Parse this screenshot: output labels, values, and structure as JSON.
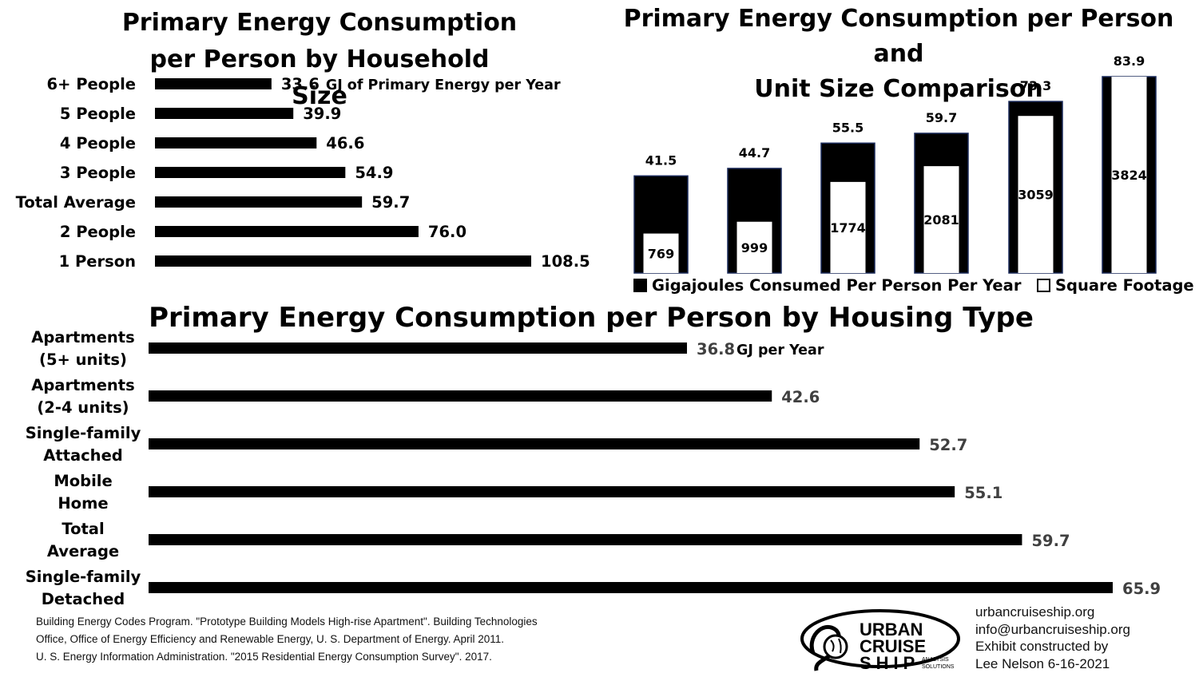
{
  "chart_data": [
    {
      "type": "bar",
      "orientation": "horizontal",
      "title": "Primary Energy Consumption per Person by Household Size",
      "categories": [
        "6+ People",
        "5 People",
        "4 People",
        "3 People",
        "Total Average",
        "2 People",
        "1 Person"
      ],
      "values": [
        33.6,
        39.9,
        46.6,
        54.9,
        59.7,
        76.0,
        108.5
      ],
      "value_labels": [
        "33.6",
        "39.9",
        "46.6",
        "54.9",
        "59.7",
        "76.0",
        "108.5"
      ],
      "unit_note": "GJ of Primary Energy per Year",
      "bar_color": "#000000"
    },
    {
      "type": "bar",
      "orientation": "vertical",
      "title": "Primary Energy Consumption per Person and Unit Size Comparison",
      "series": [
        {
          "name": "Gigajoules Consumed Per Person Per Year",
          "values": [
            41.5,
            44.7,
            55.5,
            59.7,
            73.3,
            83.9
          ],
          "labels": [
            "41.5",
            "44.7",
            "55.5",
            "59.7",
            "73.3",
            "83.9"
          ],
          "color": "#000000"
        },
        {
          "name": "Square Footage",
          "values": [
            769,
            999,
            1774,
            2081,
            3059,
            3824
          ],
          "labels": [
            "769",
            "999",
            "1774",
            "2081",
            "3059",
            "3824"
          ],
          "color": "#ffffff"
        }
      ],
      "legend": [
        {
          "label": "Gigajoules Consumed Per Person Per Year",
          "color": "#000000"
        },
        {
          "label": "Square Footage",
          "color": "#ffffff"
        }
      ]
    },
    {
      "type": "bar",
      "orientation": "horizontal",
      "title": "Primary Energy Consumption per Person by Housing Type",
      "categories": [
        [
          "Apartments",
          "(5+ units)"
        ],
        [
          "Apartments",
          "(2-4 units)"
        ],
        [
          "Single-family",
          "Attached"
        ],
        [
          "Mobile",
          "Home"
        ],
        [
          "Total",
          "Average"
        ],
        [
          "Single-family",
          "Detached"
        ]
      ],
      "values": [
        36.8,
        42.6,
        52.7,
        55.1,
        59.7,
        65.9
      ],
      "value_labels": [
        "36.8",
        "42.6",
        "52.7",
        "55.1",
        "59.7",
        "65.9"
      ],
      "unit_note": "GJ per Year",
      "bar_color": "#000000",
      "value_label_color": "#404040"
    }
  ],
  "references": [
    "Building Energy Codes Program. \"Prototype Building Models High-rise Apartment\". Building Technologies",
    "Office, Office of Energy Efficiency and Renewable Energy, U. S. Department of Energy. April 2011.",
    "U. S. Energy Information Administration. \"2015 Residential Energy Consumption Survey\". 2017."
  ],
  "contact": {
    "website": "urbancruiseship.org",
    "email": "info@urbancruiseship.org",
    "credit_line1": "Exhibit constructed by",
    "credit_line2": "Lee Nelson 6-16-2021"
  },
  "logo": {
    "icon": "urban-cruise-ship-logo",
    "line1": "URBAN",
    "line2": "CRUISE",
    "line3": "SHIP",
    "sub1": "ANALYSIS",
    "sub2": "SOLUTIONS"
  }
}
